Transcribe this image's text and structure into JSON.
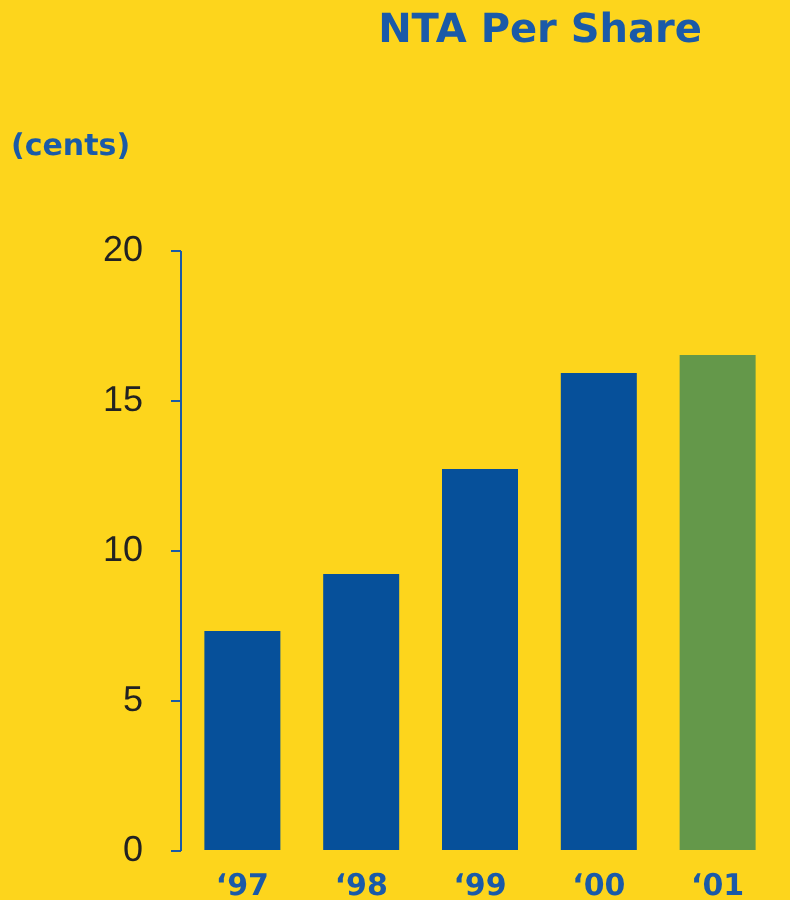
{
  "chart_data": {
    "type": "bar",
    "title": "NTA Per Share",
    "ylabel": "(cents)",
    "categories": [
      "‘97",
      "‘98",
      "‘99",
      "‘00",
      "‘01"
    ],
    "values": [
      7.3,
      9.2,
      12.7,
      15.9,
      16.5
    ],
    "colors": [
      "#06509a",
      "#06509a",
      "#06509a",
      "#06509a",
      "#64984a"
    ],
    "ylim": [
      0,
      20
    ],
    "yticks": [
      0,
      5,
      10,
      15,
      20
    ],
    "grid": false,
    "legend": false
  }
}
